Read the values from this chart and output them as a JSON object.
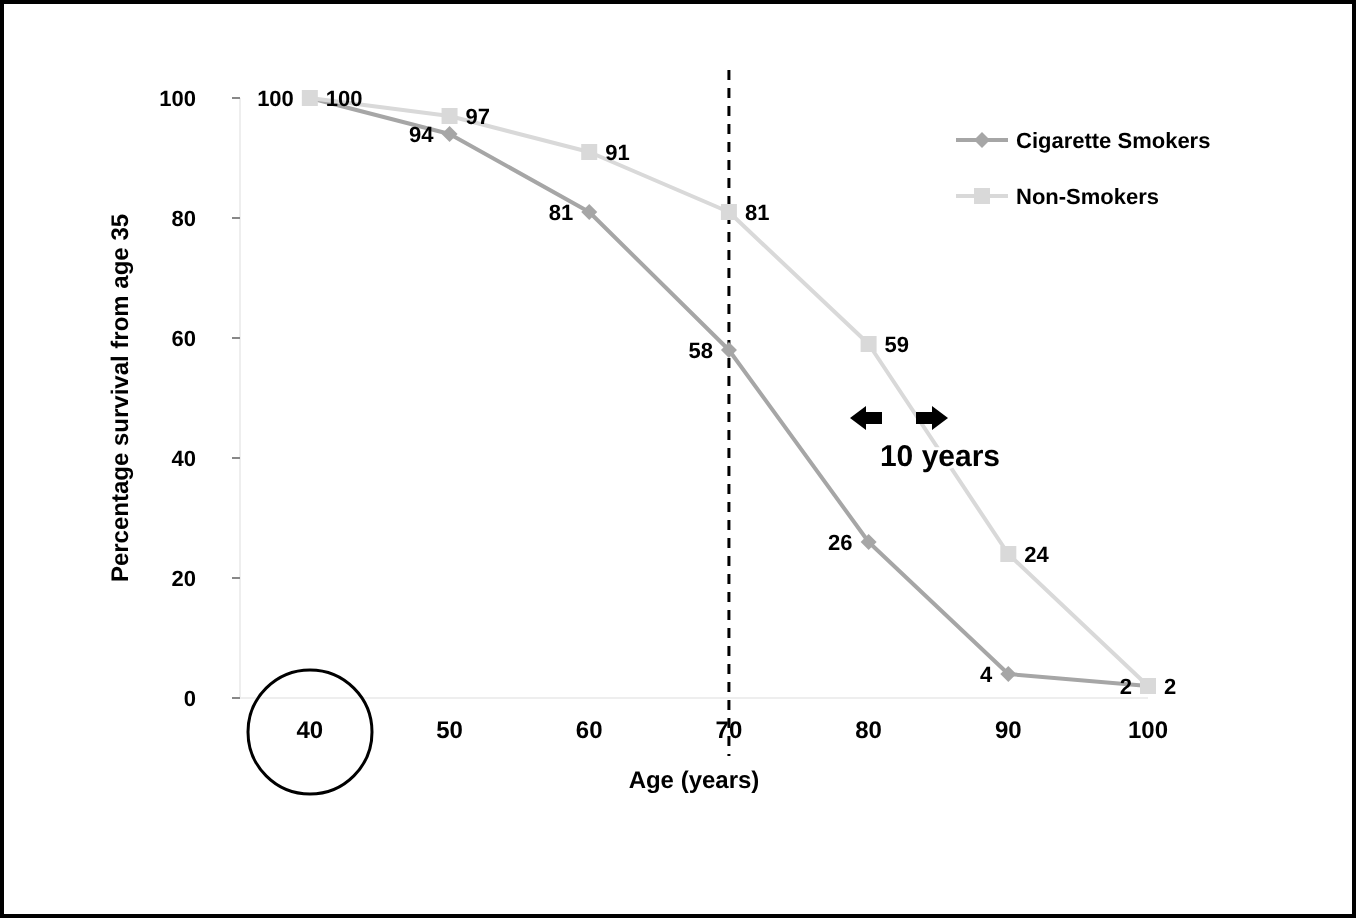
{
  "chart_data": {
    "type": "line",
    "xlabel": "Age (years)",
    "ylabel": "Percentage survival from age 35",
    "x": [
      40,
      50,
      60,
      70,
      80,
      90,
      100
    ],
    "xlim": [
      35,
      100
    ],
    "xticks": [
      40,
      50,
      60,
      70,
      80,
      90,
      100
    ],
    "ylim": [
      0,
      100
    ],
    "yticks": [
      0,
      20,
      40,
      60,
      80,
      100
    ],
    "series": [
      {
        "name": "Cigarette Smokers",
        "color": "#a6a6a6",
        "marker": "diamond",
        "values": [
          100,
          94,
          81,
          58,
          26,
          4,
          2
        ]
      },
      {
        "name": "Non-Smokers",
        "color": "#d9d9d9",
        "marker": "square",
        "values": [
          100,
          97,
          91,
          81,
          59,
          24,
          2
        ]
      }
    ],
    "data_labels": true,
    "legend": "top right",
    "grid": false,
    "ref_lines": [
      {
        "axis": "x",
        "value": 70,
        "line_style": "dashed",
        "color": "#000000"
      }
    ],
    "annotations": [
      "10 years"
    ]
  }
}
